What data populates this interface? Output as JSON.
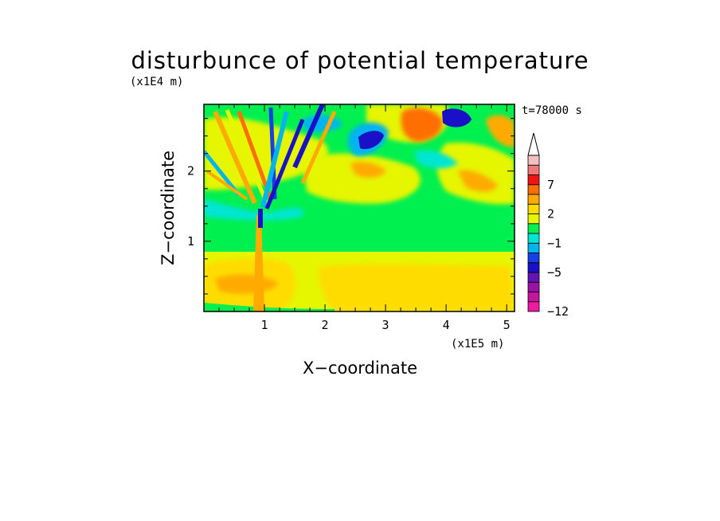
{
  "chart_data": {
    "type": "heatmap",
    "title": "disturbunce of potential temperature",
    "time_label": "t=78000 s",
    "xlabel": "X−coordinate",
    "ylabel": "Z−coordinate",
    "x_unit": "(x1E5 m)",
    "y_unit": "(x1E4 m)",
    "xlim": [
      0,
      5.13
    ],
    "ylim": [
      0,
      2.95
    ],
    "x_ticks": [
      "1",
      "2",
      "3",
      "4",
      "5"
    ],
    "y_ticks": [
      "1",
      "2"
    ],
    "colorbar": {
      "levels": [
        -12,
        -10,
        -8,
        -6,
        -5,
        -4,
        -2,
        -1,
        0,
        1,
        2,
        3,
        5,
        7,
        9,
        11
      ],
      "labels": [
        "−12",
        "−5",
        "−1",
        "2",
        "7"
      ],
      "colors": [
        "#ee1ba0",
        "#c5159c",
        "#9b10a8",
        "#6414b4",
        "#1a10c8",
        "#1440e6",
        "#00b4f0",
        "#00e6d2",
        "#00f050",
        "#e6f500",
        "#ffdc00",
        "#ffaa00",
        "#ff6e00",
        "#f01414",
        "#f07878",
        "#f5c0c0"
      ]
    }
  }
}
